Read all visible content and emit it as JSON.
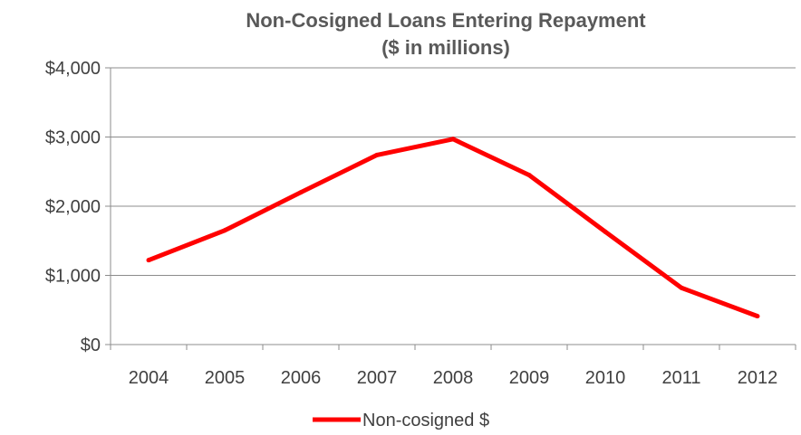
{
  "chart_data": {
    "type": "line",
    "title": "Non-Cosigned Loans Entering Repayment",
    "subtitle": "($ in millions)",
    "x": [
      "2004",
      "2005",
      "2006",
      "2007",
      "2008",
      "2009",
      "2010",
      "2011",
      "2012"
    ],
    "series": [
      {
        "name": "Non-cosigned $",
        "color": "#ff0000",
        "values": [
          1220,
          1650,
          2200,
          2740,
          2970,
          2450,
          1630,
          820,
          410
        ]
      }
    ],
    "ylim": [
      0,
      4000
    ],
    "yticks": [
      0,
      1000,
      2000,
      3000,
      4000
    ],
    "ytick_labels": [
      "$0",
      "$1,000",
      "$2,000",
      "$3,000",
      "$4,000"
    ],
    "grid": true,
    "legend_position": "bottom"
  }
}
